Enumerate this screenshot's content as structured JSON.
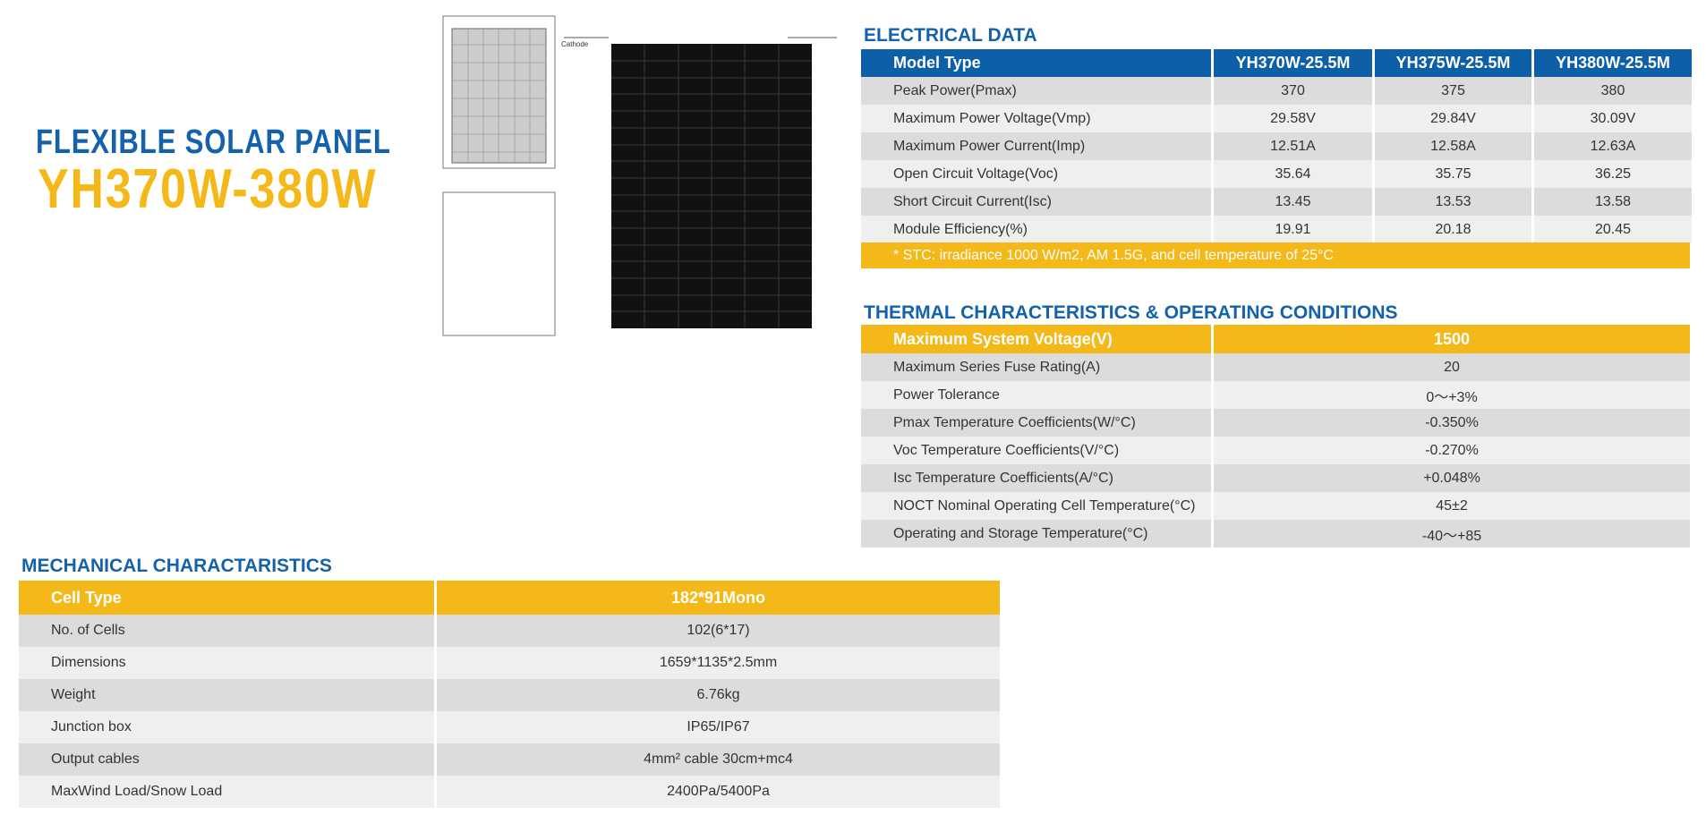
{
  "header": {
    "title_line1": "FLEXIBLE SOLAR PANEL",
    "title_line2": "YH370W-380W"
  },
  "diagram": {
    "label": "Cathode"
  },
  "electrical": {
    "title": "ELECTRICAL DATA",
    "columns": [
      "Model Type",
      "YH370W-25.5M",
      "YH375W-25.5M",
      "YH380W-25.5M"
    ],
    "rows": [
      [
        "Peak Power(Pmax)",
        "370",
        "375",
        "380"
      ],
      [
        "Maximum Power Voltage(Vmp)",
        "29.58V",
        "29.84V",
        "30.09V"
      ],
      [
        "Maximum Power Current(Imp)",
        "12.51A",
        "12.58A",
        "12.63A"
      ],
      [
        "Open Circuit Voltage(Voc)",
        "35.64",
        "35.75",
        "36.25"
      ],
      [
        "Short Circuit Current(Isc)",
        "13.45",
        "13.53",
        "13.58"
      ],
      [
        "Module Efficiency(%)",
        "19.91",
        "20.18",
        "20.45"
      ]
    ],
    "note": "* STC:  irradiance 1000 W/m2, AM 1.5G, and cell temperature of 25°C"
  },
  "thermal": {
    "title": "THERMAL CHARACTERISTICS & OPERATING CONDITIONS",
    "columns": [
      "Maximum System Voltage(V)",
      "1500"
    ],
    "rows": [
      [
        "Maximum Series Fuse Rating(A)",
        "20"
      ],
      [
        "Power Tolerance",
        "0～+3%"
      ],
      [
        "Pmax Temperature Coefficients(W/°C)",
        "-0.350%"
      ],
      [
        "Voc Temperature Coefficients(V/°C)",
        "-0.270%"
      ],
      [
        "Isc Temperature Coefficients(A/°C)",
        "+0.048%"
      ],
      [
        "NOCT Nominal Operating Cell Temperature(°C)",
        "45±2"
      ],
      [
        "Operating and Storage Temperature(°C)",
        "-40～+85"
      ]
    ]
  },
  "mechanical": {
    "title": "MECHANICAL CHARACTARISTICS",
    "columns": [
      "Cell Type",
      "182*91Mono"
    ],
    "rows": [
      [
        "No. of Cells",
        "102(6*17)"
      ],
      [
        "Dimensions",
        "1659*1135*2.5mm"
      ],
      [
        "Weight",
        "6.76kg"
      ],
      [
        "Junction box",
        "IP65/IP67"
      ],
      [
        "Output cables",
        "4mm² cable 30cm+mc4"
      ],
      [
        "MaxWind Load/Snow Load",
        "2400Pa/5400Pa"
      ]
    ]
  }
}
